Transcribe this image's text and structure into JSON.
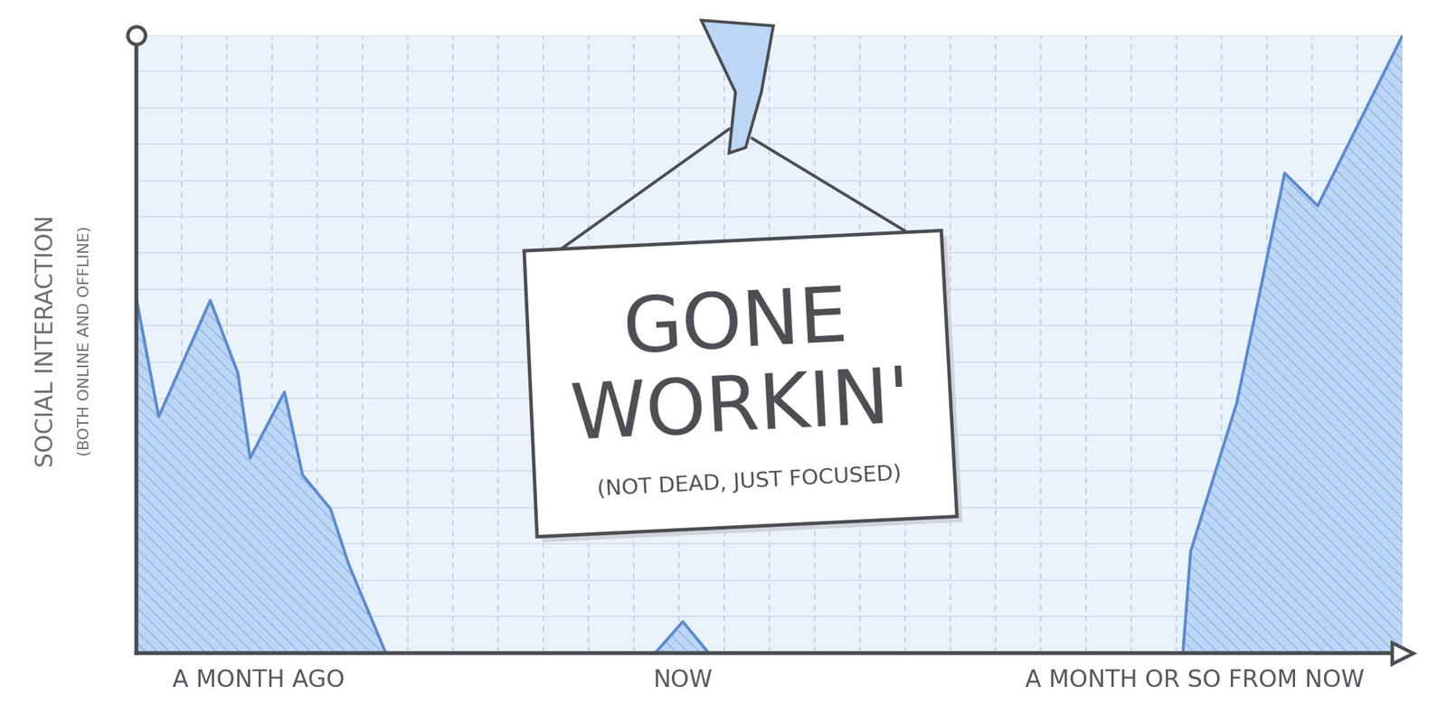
{
  "chart_data": {
    "type": "area",
    "y_label": "SOCIAL INTERACTION",
    "y_label_note": "(BOTH ONLINE AND OFFLINE)",
    "annotations": [
      "GONE WORKIN'",
      "(NOT DEAD, JUST FOCUSED)"
    ],
    "x": [
      0,
      0.49,
      1.63,
      2.24,
      2.51,
      3.27,
      3.67,
      4.29,
      4.69,
      5.51,
      8,
      11.47,
      12.08,
      12.65,
      18,
      23.14,
      23.31,
      24.33,
      25.39,
      26.12,
      28
    ],
    "values": [
      9.72,
      6.5,
      9.7,
      7.7,
      5.36,
      7.18,
      4.9,
      3.96,
      2.44,
      0,
      null,
      0,
      0.86,
      0,
      null,
      0,
      2.79,
      6.88,
      13.2,
      12.3,
      17
    ],
    "color": "#5b8bd0",
    "xlim": [
      0,
      28
    ],
    "ylim": [
      0,
      17
    ],
    "xticks": [
      {
        "value": 2.7,
        "label": "A MONTH AGO"
      },
      {
        "value": 12.08,
        "label": "NOW"
      },
      {
        "value": 23.4,
        "label": "A MONTH OR SO FROM NOW"
      }
    ],
    "yticks": [],
    "grid": true,
    "tick_labels": "x"
  }
}
